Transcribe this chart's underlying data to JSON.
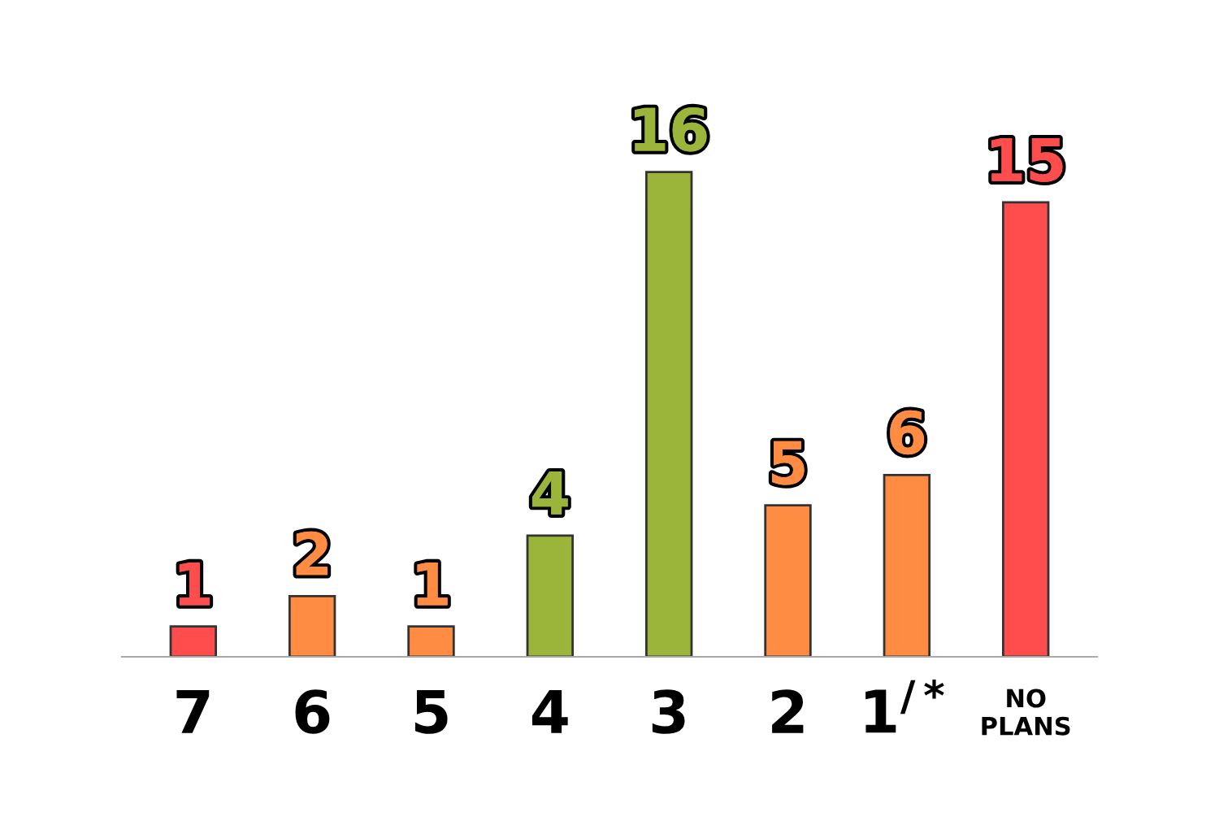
{
  "chart_data": {
    "type": "bar",
    "categories": [
      "7",
      "6",
      "5",
      "4",
      "3",
      "2",
      "1$^{/*}$",
      "NO\nPLANS"
    ],
    "values": [
      1,
      2,
      1,
      4,
      16,
      5,
      6,
      15
    ],
    "colors": [
      "#ff4d4d",
      "#ff8c42",
      "#ff8c42",
      "#9ab53a",
      "#9ab53a",
      "#ff8c42",
      "#ff8c42",
      "#ff4d4d"
    ],
    "data_labels": true,
    "tick_labels": "x",
    "grid": false,
    "legend": false
  }
}
